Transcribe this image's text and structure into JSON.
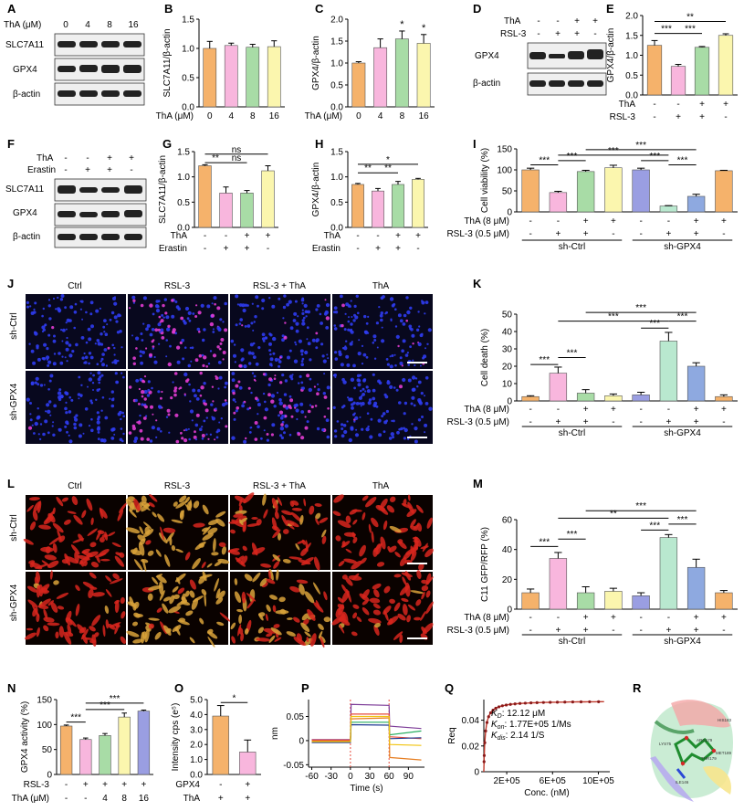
{
  "panels": {
    "A": {
      "letter": "A",
      "row1_label": "ThA (μM)",
      "row1_values": [
        "0",
        "4",
        "8",
        "16"
      ],
      "blots": [
        "SLC7A11",
        "GPX4",
        "β-actin"
      ]
    },
    "D": {
      "letter": "D",
      "rows": [
        {
          "label": "ThA",
          "values": [
            "-",
            "-",
            "+",
            "+"
          ]
        },
        {
          "label": "RSL-3",
          "values": [
            "-",
            "+",
            "+",
            "-"
          ]
        }
      ],
      "blots": [
        "GPX4",
        "β-actin"
      ]
    },
    "F": {
      "letter": "F",
      "rows": [
        {
          "label": "ThA",
          "values": [
            "-",
            "-",
            "+",
            "+"
          ]
        },
        {
          "label": "Erastin",
          "values": [
            "-",
            "+",
            "+",
            "-"
          ]
        }
      ],
      "blots": [
        "SLC7A11",
        "GPX4",
        "β-actin"
      ]
    },
    "J": {
      "letter": "J",
      "cols": [
        "Ctrl",
        "RSL-3",
        "RSL-3 + ThA",
        "ThA"
      ],
      "rows": [
        "sh-Ctrl",
        "sh-GPX4"
      ]
    },
    "L": {
      "letter": "L",
      "cols": [
        "Ctrl",
        "RSL-3",
        "RSL-3 + ThA",
        "ThA"
      ],
      "rows": [
        "sh-Ctrl",
        "sh-GPX4"
      ]
    },
    "R": {
      "letter": "R",
      "residues": [
        "HIS183",
        "LYS75",
        "MET189",
        "ARG179",
        "THR179",
        "ILE146"
      ]
    }
  },
  "chart_data": [
    {
      "id": "B",
      "letter": "B",
      "type": "bar",
      "ylabel": "SLC7A11/β-actin",
      "xlabel": "ThA (μM)",
      "categories": [
        "0",
        "4",
        "8",
        "16"
      ],
      "values": [
        1.0,
        1.05,
        1.02,
        1.03
      ],
      "errors": [
        0.12,
        0.04,
        0.05,
        0.1
      ],
      "ylim": [
        0,
        1.5
      ],
      "yticks": [
        "0.0",
        "0.5",
        "1.0",
        "1.5"
      ],
      "sig": []
    },
    {
      "id": "C",
      "letter": "C",
      "type": "bar",
      "ylabel": "GPX4/β-actin",
      "xlabel": "ThA (μM)",
      "categories": [
        "0",
        "4",
        "8",
        "16"
      ],
      "values": [
        1.0,
        1.35,
        1.55,
        1.45
      ],
      "errors": [
        0.03,
        0.2,
        0.18,
        0.2
      ],
      "ylim": [
        0,
        2.0
      ],
      "yticks": [
        "0.0",
        "0.5",
        "1.0",
        "1.5",
        "2.0"
      ],
      "sig": [
        "",
        "",
        "*",
        "*"
      ]
    },
    {
      "id": "E",
      "letter": "E",
      "type": "bar",
      "ylabel": "GPX4/β-actin",
      "rows": [
        {
          "label": "ThA",
          "values": [
            "-",
            "-",
            "+",
            "+"
          ]
        },
        {
          "label": "RSL-3",
          "values": [
            "-",
            "+",
            "+",
            "-"
          ]
        }
      ],
      "values": [
        1.25,
        0.72,
        1.2,
        1.5
      ],
      "errors": [
        0.12,
        0.05,
        0.02,
        0.04
      ],
      "ylim": [
        0,
        2.0
      ],
      "yticks": [
        "0.0",
        "0.5",
        "1.0",
        "1.5",
        "2.0"
      ],
      "brackets": [
        {
          "a": 0,
          "b": 1,
          "label": "***",
          "y": 1.55
        },
        {
          "a": 1,
          "b": 2,
          "label": "***",
          "y": 1.55
        },
        {
          "a": 0,
          "b": 3,
          "label": "**",
          "y": 1.85
        }
      ]
    },
    {
      "id": "G",
      "letter": "G",
      "type": "bar",
      "ylabel": "SLC7A11/β-actin",
      "rows": [
        {
          "label": "ThA",
          "values": [
            "-",
            "-",
            "+",
            "+"
          ]
        },
        {
          "label": "Erastin",
          "values": [
            "-",
            "+",
            "+",
            "-"
          ]
        }
      ],
      "values": [
        1.22,
        0.68,
        0.68,
        1.12
      ],
      "errors": [
        0.02,
        0.12,
        0.05,
        0.1
      ],
      "ylim": [
        0,
        1.5
      ],
      "yticks": [
        "0.0",
        "0.5",
        "1.0",
        "1.5"
      ],
      "brackets": [
        {
          "a": 0,
          "b": 1,
          "label": "**",
          "y": 1.28
        },
        {
          "a": 1,
          "b": 2,
          "label": "ns",
          "y": 1.28
        },
        {
          "a": 0,
          "b": 3,
          "label": "ns",
          "y": 1.45
        }
      ]
    },
    {
      "id": "H",
      "letter": "H",
      "type": "bar",
      "ylabel": "GPX4/β-actin",
      "rows": [
        {
          "label": "ThA",
          "values": [
            "-",
            "-",
            "+",
            "+"
          ]
        },
        {
          "label": "Erastin",
          "values": [
            "-",
            "+",
            "+",
            "-"
          ]
        }
      ],
      "values": [
        0.85,
        0.72,
        0.85,
        0.95
      ],
      "errors": [
        0.02,
        0.05,
        0.06,
        0.02
      ],
      "ylim": [
        0,
        1.5
      ],
      "yticks": [
        "0.0",
        "0.5",
        "1.0",
        "1.5"
      ],
      "brackets": [
        {
          "a": 0,
          "b": 1,
          "label": "**",
          "y": 1.08
        },
        {
          "a": 1,
          "b": 2,
          "label": "**",
          "y": 1.08
        },
        {
          "a": 0,
          "b": 3,
          "label": "*",
          "y": 1.25
        }
      ]
    },
    {
      "id": "I",
      "letter": "I",
      "type": "bar",
      "ylabel": "Cell viability (%)",
      "rows": [
        {
          "label": "ThA (8 μM)",
          "values": [
            "-",
            "-",
            "+",
            "+",
            "-",
            "-",
            "+",
            "+"
          ]
        },
        {
          "label": "RSL-3 (0.5 μM)",
          "values": [
            "-",
            "+",
            "+",
            "-",
            "-",
            "+",
            "+",
            "-"
          ]
        }
      ],
      "groups": [
        "sh-Ctrl",
        "sh-GPX4"
      ],
      "values": [
        100,
        46,
        96,
        105,
        100,
        14,
        37,
        98
      ],
      "errors": [
        4,
        3,
        3,
        6,
        4,
        1,
        5,
        1
      ],
      "ylim": [
        0,
        150
      ],
      "yticks": [
        "0",
        "50",
        "100",
        "150"
      ],
      "brackets": [
        {
          "a": 0,
          "b": 1,
          "label": "***",
          "y": 112
        },
        {
          "a": 1,
          "b": 2,
          "label": "***",
          "y": 122
        },
        {
          "a": 5,
          "b": 6,
          "label": "***",
          "y": 112
        },
        {
          "a": 4,
          "b": 5,
          "label": "***",
          "y": 122
        },
        {
          "a": 1,
          "b": 5,
          "label": "***",
          "y": 135
        },
        {
          "a": 2,
          "b": 6,
          "label": "***",
          "y": 148
        }
      ]
    },
    {
      "id": "K",
      "letter": "K",
      "type": "bar",
      "ylabel": "Cell death (%)",
      "rows": [
        {
          "label": "ThA (8 μM)",
          "values": [
            "-",
            "-",
            "+",
            "+",
            "-",
            "-",
            "+",
            "+"
          ]
        },
        {
          "label": "RSL-3 (0.5 μM)",
          "values": [
            "-",
            "+",
            "+",
            "-",
            "-",
            "+",
            "+",
            "-"
          ]
        }
      ],
      "groups": [
        "sh-Ctrl",
        "sh-GPX4"
      ],
      "values": [
        2.5,
        16,
        4.5,
        3,
        3.5,
        34.5,
        20,
        2.5
      ],
      "errors": [
        0.5,
        3.5,
        2,
        1,
        1.5,
        5,
        2,
        1
      ],
      "ylim": [
        0,
        50
      ],
      "yticks": [
        "0",
        "10",
        "20",
        "30",
        "40",
        "50"
      ],
      "brackets": [
        {
          "a": 0,
          "b": 1,
          "label": "***",
          "y": 21
        },
        {
          "a": 1,
          "b": 2,
          "label": "***",
          "y": 25
        },
        {
          "a": 4,
          "b": 5,
          "label": "***",
          "y": 42
        },
        {
          "a": 5,
          "b": 6,
          "label": "***",
          "y": 46
        },
        {
          "a": 1,
          "b": 5,
          "label": "***",
          "y": 46
        },
        {
          "a": 2,
          "b": 6,
          "label": "***",
          "y": 51
        }
      ]
    },
    {
      "id": "M",
      "letter": "M",
      "type": "bar",
      "ylabel": "C11 GFP/RFP (%)",
      "rows": [
        {
          "label": "ThA (8 μM)",
          "values": [
            "-",
            "-",
            "+",
            "+",
            "-",
            "-",
            "+",
            "+"
          ]
        },
        {
          "label": "RSL-3 (0.5 μM)",
          "values": [
            "-",
            "+",
            "+",
            "-",
            "-",
            "+",
            "+",
            "-"
          ]
        }
      ],
      "groups": [
        "sh-Ctrl",
        "sh-GPX4"
      ],
      "values": [
        11,
        34,
        11,
        12,
        9,
        48,
        28,
        11
      ],
      "errors": [
        2.5,
        4,
        4,
        2,
        2,
        2,
        5.5,
        1.5
      ],
      "ylim": [
        0,
        60
      ],
      "yticks": [
        "0",
        "20",
        "40",
        "60"
      ],
      "brackets": [
        {
          "a": 0,
          "b": 1,
          "label": "***",
          "y": 42
        },
        {
          "a": 1,
          "b": 2,
          "label": "***",
          "y": 47
        },
        {
          "a": 4,
          "b": 5,
          "label": "***",
          "y": 53
        },
        {
          "a": 5,
          "b": 6,
          "label": "***",
          "y": 57
        },
        {
          "a": 1,
          "b": 5,
          "label": "**",
          "y": 61
        },
        {
          "a": 2,
          "b": 6,
          "label": "***",
          "y": 66
        }
      ]
    },
    {
      "id": "N",
      "letter": "N",
      "type": "bar",
      "ylabel": "GPX4 activity (%)",
      "rows": [
        {
          "label": "RSL-3",
          "values": [
            "-",
            "+",
            "+",
            "+",
            "+"
          ]
        },
        {
          "label": "ThA (μM)",
          "values": [
            "-",
            "-",
            "4",
            "8",
            "16"
          ]
        }
      ],
      "values": [
        97,
        70,
        78,
        115,
        127
      ],
      "errors": [
        2,
        3,
        4,
        8,
        2
      ],
      "ylim": [
        0,
        150
      ],
      "yticks": [
        "0",
        "50",
        "100",
        "150"
      ],
      "brackets": [
        {
          "a": 0,
          "b": 1,
          "label": "***",
          "y": 105
        },
        {
          "a": 1,
          "b": 3,
          "label": "***",
          "y": 130
        },
        {
          "a": 1,
          "b": 4,
          "label": "***",
          "y": 143
        }
      ]
    },
    {
      "id": "O",
      "letter": "O",
      "type": "bar",
      "ylabel": "Intensity cps (e⁵)",
      "rows": [
        {
          "label": "GPX4",
          "values": [
            "-",
            "+"
          ]
        },
        {
          "label": "ThA",
          "values": [
            "+",
            "+"
          ]
        }
      ],
      "values": [
        3.9,
        1.5
      ],
      "errors": [
        0.7,
        0.8
      ],
      "ylim": [
        0,
        5.0
      ],
      "yticks": [
        "0.0",
        "1.0",
        "2.0",
        "3.0",
        "4.0",
        "5.0"
      ],
      "brackets": [
        {
          "a": 0,
          "b": 1,
          "label": "*",
          "y": 4.8
        }
      ]
    },
    {
      "id": "P",
      "letter": "P",
      "type": "line",
      "ylabel": "nm",
      "xlabel": "Time (s)",
      "xlim": [
        -65,
        115
      ],
      "ylim": [
        -0.055,
        0.085
      ],
      "xticks": [
        "-60",
        "-30",
        "0",
        "30",
        "60",
        "90"
      ],
      "xtick_values": [
        -60,
        -30,
        0,
        30,
        60,
        90
      ],
      "yticks": [
        "-0.05",
        "0",
        "0.05"
      ],
      "ytick_values": [
        -0.05,
        0,
        0.05
      ],
      "series": [
        {
          "color": "#7d3c98",
          "values": [
            [
              -60,
              0.002
            ],
            [
              0,
              0.002
            ],
            [
              1,
              0.075
            ],
            [
              58,
              0.073
            ],
            [
              60,
              0.073
            ],
            [
              61,
              0.03
            ],
            [
              110,
              0.025
            ]
          ]
        },
        {
          "color": "#e67e22",
          "values": [
            [
              -60,
              0
            ],
            [
              0,
              0
            ],
            [
              1,
              0.045
            ],
            [
              58,
              0.047
            ],
            [
              60,
              0.047
            ],
            [
              61,
              -0.035
            ],
            [
              110,
              -0.04
            ]
          ]
        },
        {
          "color": "#e74c3c",
          "values": [
            [
              -60,
              0.001
            ],
            [
              0,
              0.001
            ],
            [
              1,
              0.055
            ],
            [
              58,
              0.055
            ],
            [
              60,
              0.055
            ],
            [
              61,
              0.008
            ],
            [
              110,
              0.004
            ]
          ]
        },
        {
          "color": "#27ae60",
          "values": [
            [
              -60,
              -0.003
            ],
            [
              0,
              -0.003
            ],
            [
              1,
              0.038
            ],
            [
              58,
              0.038
            ],
            [
              60,
              0.038
            ],
            [
              61,
              0.012
            ],
            [
              110,
              0.02
            ]
          ]
        },
        {
          "color": "#1f3a93",
          "values": [
            [
              -60,
              -0.004
            ],
            [
              0,
              -0.004
            ],
            [
              1,
              0.033
            ],
            [
              58,
              0.032
            ],
            [
              60,
              0.032
            ],
            [
              61,
              0.004
            ],
            [
              110,
              0.006
            ]
          ]
        },
        {
          "color": "#f1c40f",
          "values": [
            [
              -60,
              -0.002
            ],
            [
              0,
              -0.002
            ],
            [
              1,
              0.05
            ],
            [
              58,
              0.05
            ],
            [
              60,
              0.05
            ],
            [
              61,
              -0.008
            ],
            [
              110,
              -0.01
            ]
          ]
        }
      ]
    },
    {
      "id": "Q",
      "letter": "Q",
      "type": "scatter",
      "ylabel": "Req",
      "xlabel": "Conc. (nM)",
      "xlim": [
        0,
        1100000
      ],
      "ylim": [
        0,
        0.056
      ],
      "xticks": [
        "2E+05",
        "6E+05",
        "10E+05"
      ],
      "xtick_values": [
        200000,
        600000,
        1000000
      ],
      "yticks": [
        "0",
        "0.02",
        "0.04"
      ],
      "ytick_values": [
        0,
        0.02,
        0.04
      ],
      "fit": {
        "rmax": 0.055,
        "kd_nm": 12120
      },
      "annotations": [
        {
          "label": "K",
          "sub": "D",
          "value": ": 12.12 μM"
        },
        {
          "label": "K",
          "sub": "on",
          "value": ": 1.77E+05 1/Ms"
        },
        {
          "label": "K",
          "sub": "dis",
          "value": ": 2.14 1/S"
        }
      ]
    }
  ]
}
